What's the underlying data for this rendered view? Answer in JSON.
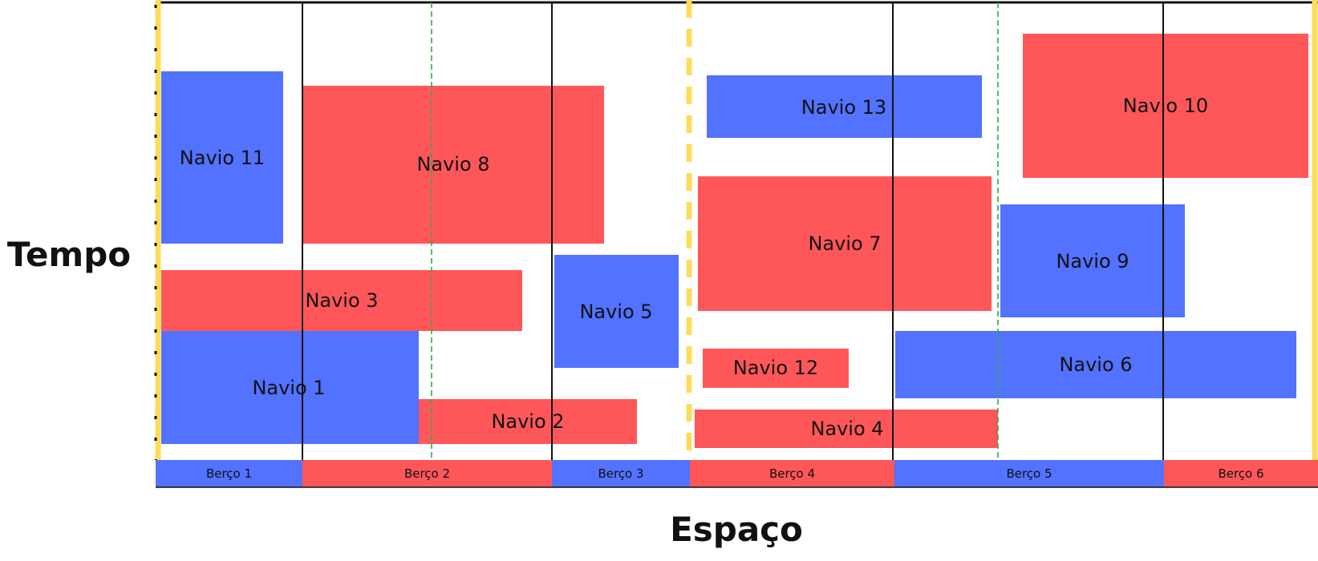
{
  "colors": {
    "blue": "#5272ff",
    "red": "#ff5759",
    "yellow_boundary": "#fedc5a",
    "green_divider": "#27b04a",
    "line": "#111111"
  },
  "axes": {
    "y_title": "Tempo",
    "x_title": "Espaço"
  },
  "berths": [
    {
      "label": "Berço 1",
      "color": "blue"
    },
    {
      "label": "Berço 2",
      "color": "red"
    },
    {
      "label": "Berço 3",
      "color": "blue"
    },
    {
      "label": "Berço 4",
      "color": "red"
    },
    {
      "label": "Berço 5",
      "color": "blue"
    },
    {
      "label": "Berço 6",
      "color": "red"
    }
  ],
  "ships": [
    {
      "label": "Navio 1",
      "color": "blue"
    },
    {
      "label": "Navio 2",
      "color": "red"
    },
    {
      "label": "Navio 3",
      "color": "red"
    },
    {
      "label": "Navio 4",
      "color": "red"
    },
    {
      "label": "Navio 5",
      "color": "blue"
    },
    {
      "label": "Navio 6",
      "color": "blue"
    },
    {
      "label": "Navio 7",
      "color": "red"
    },
    {
      "label": "Navio 8",
      "color": "red"
    },
    {
      "label": "Navio 9",
      "color": "blue"
    },
    {
      "label": "Navio 10",
      "color": "red"
    },
    {
      "label": "Navio 11",
      "color": "blue"
    },
    {
      "label": "Navio 12",
      "color": "red"
    },
    {
      "label": "Navio 13",
      "color": "blue"
    }
  ]
}
